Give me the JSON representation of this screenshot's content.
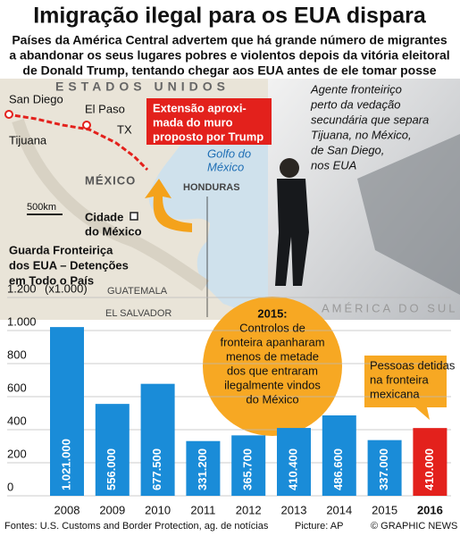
{
  "header": {
    "title": "Imigração ilegal para os EUA dispara",
    "subtitle": [
      "Países da América Central advertem que há grande número de migrantes",
      "a abandonar os seus lugares pobres e violentos depois da vitória eleitoral",
      "de Donald Trump, tentando chegar aos EUA antes de ele tomar posse"
    ]
  },
  "map": {
    "country_us": "ESTADOS UNIDOS",
    "san_diego": "San Diego",
    "tijuana": "Tijuana",
    "el_paso": "El Paso",
    "tx": "TX",
    "mexico": "MÉXICO",
    "gulf": [
      "Golfo do",
      "México"
    ],
    "honduras": "HONDURAS",
    "scale": "500km",
    "capital": [
      "Cidade",
      "do México"
    ],
    "guatemala": "GUATEMALA",
    "el_salvador": "EL SALVADOR",
    "south_america": "AMÉRICA DO SUL",
    "wall_callout": [
      "Extensão aproxi-",
      "mada do muro",
      "proposto por Trump"
    ]
  },
  "photo_caption": [
    "Agente fronteiriço",
    "perto da vedação",
    "secundária que separa",
    "Tijuana, no México,",
    "de San Diego,",
    "nos EUA"
  ],
  "chart_data": {
    "type": "bar",
    "title": [
      "Guarda Fronteiriça",
      "dos EUA – Detenções",
      "em Todo o País"
    ],
    "unit": "(x1.000)",
    "categories": [
      "2008",
      "2009",
      "2010",
      "2011",
      "2012",
      "2013",
      "2014",
      "2015",
      "2016"
    ],
    "values": [
      1021,
      556,
      677.5,
      331.2,
      365.7,
      410.4,
      486.6,
      337,
      410
    ],
    "value_labels": [
      "1.021.000",
      "556.000",
      "677.500",
      "331.200",
      "365.700",
      "410.400",
      "486.600",
      "337.000",
      "410.000"
    ],
    "color": "#1a8cd8",
    "highlight_color": "#e3211c",
    "ylim": [
      0,
      1200
    ],
    "yticks": [
      0,
      200,
      400,
      600,
      800,
      {
        "value": 1000,
        "label": "1.000"
      },
      {
        "value": 1200,
        "label": "1.200"
      }
    ],
    "annotation": {
      "heading": "2015:",
      "lines": [
        "Controlos de",
        "fronteira apanharam",
        "menos de metade",
        "dos que entraram",
        "ilegalmente vindos",
        "do México"
      ]
    },
    "highlight_note": [
      "Pessoas detidas",
      "na fronteira",
      "mexicana"
    ]
  },
  "footer": {
    "sources": "Fontes: U.S. Customs and Border Protection, ag. de notícias",
    "picture": "Picture: AP",
    "credit": "© GRAPHIC NEWS"
  }
}
